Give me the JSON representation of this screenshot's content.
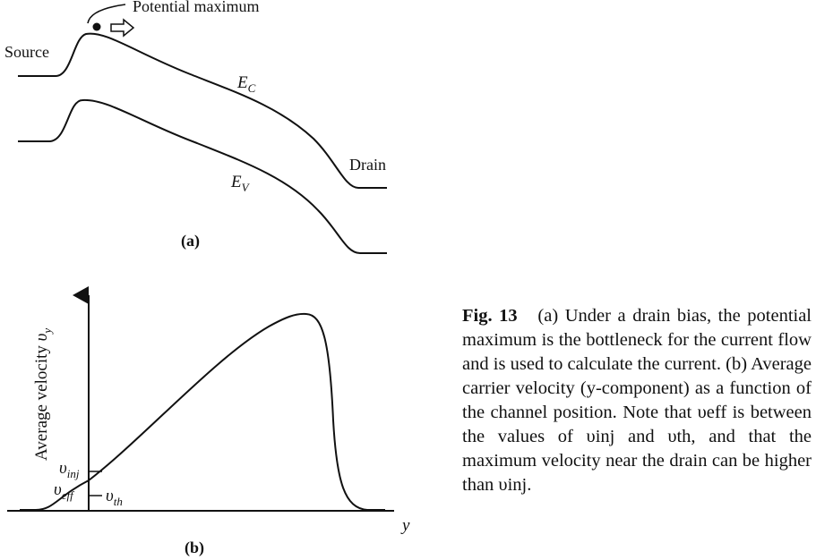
{
  "figure_a": {
    "annotation": "Potential maximum",
    "source_label": "Source",
    "drain_label": "Drain",
    "ec_label": {
      "main": "E",
      "sub": "C"
    },
    "ev_label": {
      "main": "E",
      "sub": "V"
    },
    "panel_label": "(a)"
  },
  "figure_b": {
    "y_axis_label": {
      "main": "Average velocity ",
      "var": "υ",
      "sub": "y"
    },
    "x_axis_label": "y",
    "v_inj": {
      "main": "υ",
      "sub": "inj"
    },
    "v_eff": {
      "main": "υ",
      "sub": "eff"
    },
    "v_th": {
      "main": "υ",
      "sub": "th"
    },
    "panel_label": "(b)"
  },
  "caption": {
    "figure_number": "Fig. 13",
    "body": "(a) Under a drain bias, the potential maximum is the bottleneck for the current flow and is used to calculate the current. (b) Average carrier velocity (y-component) as a function of the channel position. Note that υeff is between the values of υinj and υth, and that the maximum velocity near the drain can be higher than υinj."
  }
}
